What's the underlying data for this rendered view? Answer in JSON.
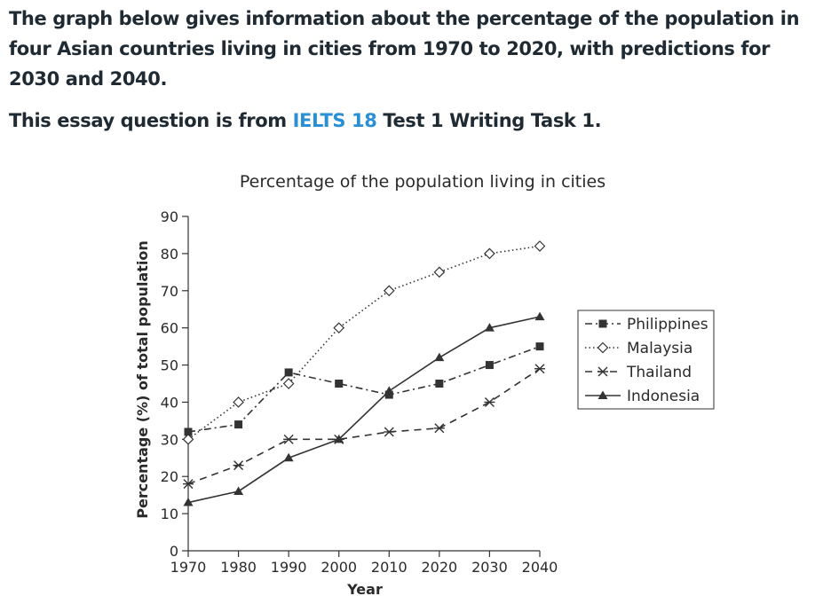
{
  "intro": {
    "question": "The graph below gives information about the percentage of the population in four Asian countries living in cities from 1970 to 2020, with predictions for 2030 and 2040.",
    "source_prefix": "This essay question is from ",
    "source_link": "IELTS 18",
    "source_suffix": " Test 1 Writing Task 1."
  },
  "colors": {
    "heading": "#1f2a33",
    "link": "#2b8fd6",
    "lines": "#333333"
  },
  "chart_data": {
    "type": "line",
    "title": "Percentage of the population living in cities",
    "xlabel": "Year",
    "ylabel": "Percentage (%) of total population",
    "x": [
      1970,
      1980,
      1990,
      2000,
      2010,
      2020,
      2030,
      2040
    ],
    "ylim": [
      0,
      90
    ],
    "yticks": [
      0,
      10,
      20,
      30,
      40,
      50,
      60,
      70,
      80,
      90
    ],
    "grid": false,
    "legend_position": "right",
    "series": [
      {
        "name": "Philippines",
        "marker": "square",
        "dash": "dash-dot",
        "values": [
          32,
          34,
          48,
          45,
          42,
          45,
          50,
          55
        ]
      },
      {
        "name": "Malaysia",
        "marker": "diamond-open",
        "dash": "dotted",
        "values": [
          30,
          40,
          45,
          60,
          70,
          75,
          80,
          82
        ]
      },
      {
        "name": "Thailand",
        "marker": "asterisk",
        "dash": "dashed",
        "values": [
          18,
          23,
          30,
          30,
          32,
          33,
          40,
          49
        ]
      },
      {
        "name": "Indonesia",
        "marker": "triangle",
        "dash": "solid",
        "values": [
          13,
          16,
          25,
          30,
          43,
          52,
          60,
          63
        ]
      }
    ]
  }
}
